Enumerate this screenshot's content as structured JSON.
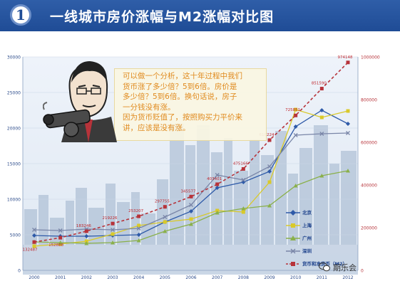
{
  "header": {
    "badge": "1",
    "title": "一线城市房价涨幅与M2涨幅对比图"
  },
  "callout": {
    "lines": [
      "可以做一个分析，这十年过程中我们",
      "货币涨了多少倍？5到6倍。房价是",
      "多少倍？5到6倍。换句话说，房子",
      "一分钱没有涨。",
      "因为货币贬值了，按照购买力平价来",
      "讲，应该是没有涨。"
    ]
  },
  "watermark": "期乐会",
  "colors": {
    "header": "#1f4c96",
    "beijing": "#2e5aa8",
    "shanghai": "#d9c92a",
    "guangzhou": "#8ab04a",
    "shenzhen": "#7a86a8",
    "m2": "#b7333a",
    "axis_text": "#2a4a8a"
  },
  "chart_data": {
    "type": "line",
    "x": [
      "2000",
      "2001",
      "2002",
      "2003",
      "2004",
      "2005",
      "2006",
      "2007",
      "2008",
      "2009",
      "2010",
      "2011",
      "2012"
    ],
    "y_left": {
      "min": 0,
      "max": 30000,
      "ticks": [
        0,
        5000,
        10000,
        15000,
        20000,
        25000,
        30000
      ]
    },
    "y_right": {
      "min": 0,
      "max": 1000000,
      "ticks": [
        0,
        200000,
        400000,
        600000,
        800000,
        1000000
      ]
    },
    "series": [
      {
        "name": "北京",
        "axis": "left",
        "color": "#2e5aa8",
        "marker": "diamond",
        "values": [
          4900,
          4800,
          4800,
          4900,
          5000,
          6800,
          8300,
          11600,
          12400,
          13900,
          20200,
          22500,
          20600
        ]
      },
      {
        "name": "上海",
        "axis": "left",
        "color": "#d9c92a",
        "marker": "square",
        "values": [
          3400,
          3700,
          4100,
          5100,
          6300,
          6800,
          7200,
          8400,
          8200,
          12400,
          22600,
          21500,
          22400
        ]
      },
      {
        "name": "广州",
        "axis": "left",
        "color": "#8ab04a",
        "marker": "triangle",
        "values": [
          4000,
          3900,
          3800,
          3900,
          4200,
          5500,
          6500,
          8100,
          8700,
          9100,
          11900,
          13300,
          14000
        ]
      },
      {
        "name": "深圳",
        "axis": "left",
        "color": "#7a86a8",
        "marker": "x",
        "values": [
          5700,
          5600,
          5800,
          5700,
          5900,
          7500,
          9200,
          13400,
          12700,
          14600,
          19000,
          19200,
          19300
        ]
      },
      {
        "name": "货币和准货币（M2）",
        "axis": "right",
        "color": "#b7333a",
        "marker": "square",
        "values": [
          132487,
          152888,
          183246,
          219226,
          253207,
          297755,
          345577,
          403401,
          475166,
          610224,
          725851,
          851590,
          974148
        ]
      }
    ],
    "data_labels": [
      "132487",
      "152888",
      "183246",
      "219226",
      "253207",
      "297755",
      "345577",
      "403401",
      "475166",
      "610224",
      "725851",
      "851590",
      "974148"
    ]
  }
}
